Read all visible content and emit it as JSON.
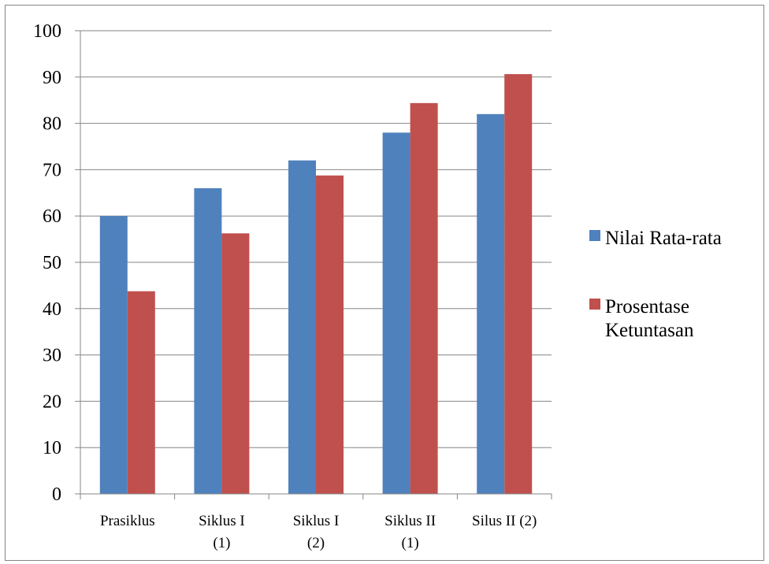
{
  "chart_data": {
    "type": "bar",
    "title": "",
    "xlabel": "",
    "ylabel": "",
    "ylim": [
      0,
      100
    ],
    "yticks": [
      0,
      10,
      20,
      30,
      40,
      50,
      60,
      70,
      80,
      90,
      100
    ],
    "grid": true,
    "legend_position": "right",
    "categories": [
      [
        "Prasiklus"
      ],
      [
        "Siklus I",
        "(1)"
      ],
      [
        "Siklus I",
        "(2)"
      ],
      [
        "Siklus II",
        "(1)"
      ],
      [
        "Silus II (2)"
      ]
    ],
    "series": [
      {
        "name": "Nilai Rata-rata",
        "color": "#4F81BD",
        "values": [
          60,
          66,
          72,
          78,
          82
        ]
      },
      {
        "name": "Prosentase Ketuntasan",
        "color": "#C0504D",
        "values": [
          43.75,
          56.25,
          68.75,
          84.38,
          90.63
        ]
      }
    ],
    "legend_labels": [
      [
        "Nilai Rata-rata"
      ],
      [
        "Prosentase",
        "Ketuntasan"
      ]
    ]
  }
}
